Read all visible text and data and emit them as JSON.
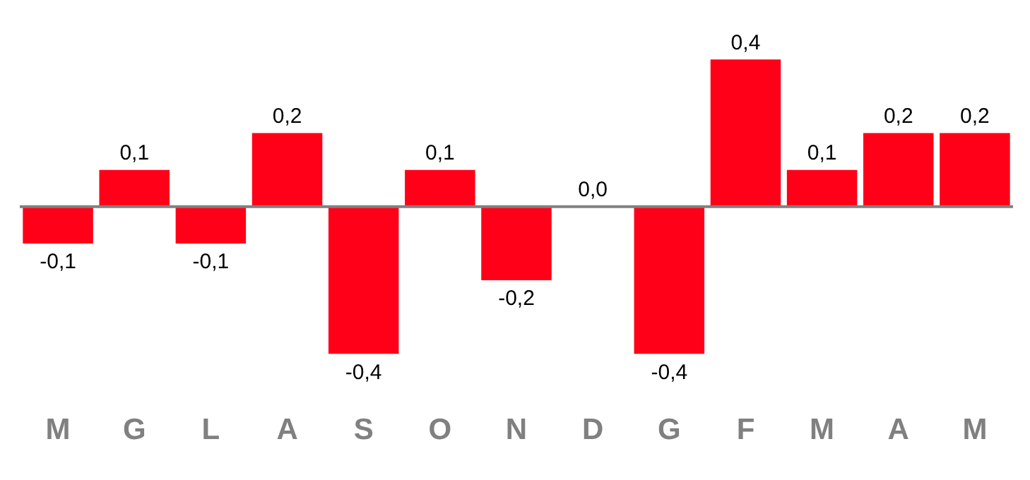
{
  "chart_data": {
    "type": "bar",
    "categories": [
      "M",
      "G",
      "L",
      "A",
      "S",
      "O",
      "N",
      "D",
      "G",
      "F",
      "M",
      "A",
      "M"
    ],
    "values": [
      -0.1,
      0.1,
      -0.1,
      0.2,
      -0.4,
      0.1,
      -0.2,
      0.0,
      -0.4,
      0.4,
      0.1,
      0.2,
      0.2
    ],
    "value_labels": [
      "-0,1",
      "0,1",
      "-0,1",
      "0,2",
      "-0,4",
      "0,1",
      "-0,2",
      "0,0",
      "-0,4",
      "0,4",
      "0,1",
      "0,2",
      "0,2"
    ],
    "color": "#ff0018",
    "grid": false,
    "legend": false
  }
}
